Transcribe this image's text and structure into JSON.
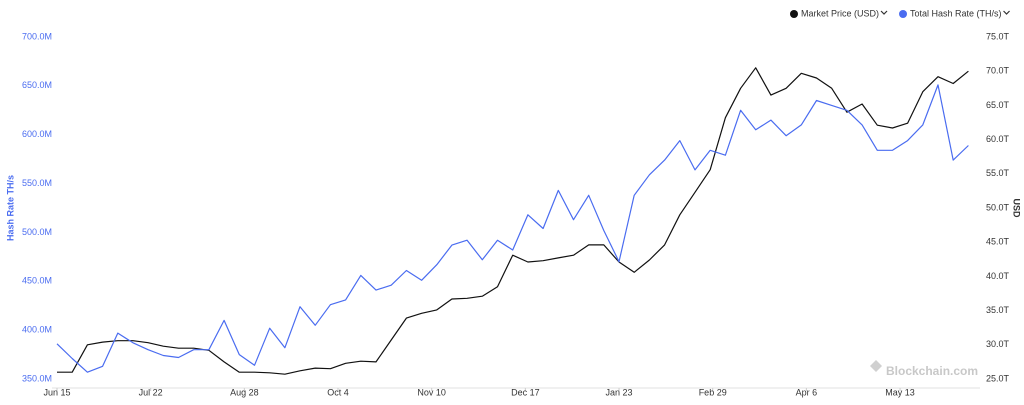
{
  "chart_data": {
    "type": "line",
    "y_label": "Hash Rate TH/s",
    "y2_label": "USD",
    "watermark": "Blockchain.com",
    "legend": "top-right",
    "grid": false,
    "xlim": [
      0,
      363
    ],
    "xticks": [
      {
        "value": 0,
        "label": "Jun 15"
      },
      {
        "value": 37,
        "label": "Jul 22"
      },
      {
        "value": 74,
        "label": "Aug 28"
      },
      {
        "value": 111,
        "label": "Oct 4"
      },
      {
        "value": 148,
        "label": "Nov 10"
      },
      {
        "value": 185,
        "label": "Dec 17"
      },
      {
        "value": 222,
        "label": "Jan 23"
      },
      {
        "value": 259,
        "label": "Feb 29"
      },
      {
        "value": 296,
        "label": "Apr 6"
      },
      {
        "value": 333,
        "label": "May 13"
      }
    ],
    "ylim": [
      350000000.0,
      700000000.0
    ],
    "yticks": [
      {
        "value": 350000000.0,
        "label": "350.0M"
      },
      {
        "value": 400000000.0,
        "label": "400.0M"
      },
      {
        "value": 450000000.0,
        "label": "450.0M"
      },
      {
        "value": 500000000.0,
        "label": "500.0M"
      },
      {
        "value": 550000000.0,
        "label": "550.0M"
      },
      {
        "value": 600000000.0,
        "label": "600.0M"
      },
      {
        "value": 650000000.0,
        "label": "650.0M"
      },
      {
        "value": 700000000.0,
        "label": "700.0M"
      }
    ],
    "y2lim": [
      25000000000000.0,
      75000000000000.0
    ],
    "y2ticks": [
      {
        "value": 25000000000000.0,
        "label": "25.0T"
      },
      {
        "value": 30000000000000.0,
        "label": "30.0T"
      },
      {
        "value": 35000000000000.0,
        "label": "35.0T"
      },
      {
        "value": 40000000000000.0,
        "label": "40.0T"
      },
      {
        "value": 45000000000000.0,
        "label": "45.0T"
      },
      {
        "value": 50000000000000.0,
        "label": "50.0T"
      },
      {
        "value": 55000000000000.0,
        "label": "55.0T"
      },
      {
        "value": 60000000000000.0,
        "label": "60.0T"
      },
      {
        "value": 65000000000000.0,
        "label": "65.0T"
      },
      {
        "value": 70000000000000.0,
        "label": "70.0T"
      },
      {
        "value": 75000000000000.0,
        "label": "75.0T"
      }
    ],
    "x": [
      0,
      6,
      12,
      18,
      24,
      30,
      36,
      42,
      48,
      54,
      60,
      66,
      72,
      78,
      84,
      90,
      96,
      102,
      108,
      114,
      120,
      126,
      132,
      138,
      144,
      150,
      156,
      162,
      168,
      174,
      180,
      186,
      192,
      198,
      204,
      210,
      216,
      222,
      228,
      234,
      240,
      246,
      252,
      258,
      264,
      270,
      276,
      282,
      288,
      294,
      300,
      306,
      312,
      318,
      324,
      330,
      336,
      342,
      348,
      354,
      360
    ],
    "series": [
      {
        "name": "Market Price (USD)",
        "color": "#111111",
        "axis": "y2",
        "values": [
          26000000000000.0,
          26000000000000.0,
          30000000000000.0,
          30400000000000.0,
          30600000000000.0,
          30600000000000.0,
          30300000000000.0,
          29800000000000.0,
          29500000000000.0,
          29500000000000.0,
          29200000000000.0,
          27500000000000.0,
          26000000000000.0,
          26000000000000.0,
          25900000000000.0,
          25700000000000.0,
          26200000000000.0,
          26600000000000.0,
          26500000000000.0,
          27300000000000.0,
          27600000000000.0,
          27500000000000.0,
          30700000000000.0,
          33900000000000.0,
          34600000000000.0,
          35100000000000.0,
          36700000000000.0,
          36800000000000.0,
          37100000000000.0,
          38500000000000.0,
          43100000000000.0,
          42100000000000.0,
          42300000000000.0,
          42700000000000.0,
          43100000000000.0,
          44600000000000.0,
          44600000000000.0,
          42100000000000.0,
          40600000000000.0,
          42400000000000.0,
          44600000000000.0,
          49000000000000.0,
          52300000000000.0,
          55600000000000.0,
          63200000000000.0,
          67500000000000.0,
          70500000000000.0,
          66500000000000.0,
          67500000000000.0,
          69700000000000.0,
          69000000000000.0,
          67500000000000.0,
          64000000000000.0,
          65200000000000.0,
          62100000000000.0,
          61700000000000.0,
          62400000000000.0,
          67000000000000.0,
          69200000000000.0,
          68200000000000.0,
          70000000000000.0
        ]
      },
      {
        "name": "Total Hash Rate (TH/s)",
        "color": "#4a6cf0",
        "axis": "y",
        "values": [
          386000000.0,
          371000000.0,
          357000000.0,
          363000000.0,
          397000000.0,
          387000000.0,
          380000000.0,
          374000000.0,
          372000000.0,
          380000000.0,
          380000000.0,
          410000000.0,
          375000000.0,
          364000000.0,
          402000000.0,
          382000000.0,
          424000000.0,
          405000000.0,
          426000000.0,
          431000000.0,
          456000000.0,
          441000000.0,
          446000000.0,
          461000000.0,
          451000000.0,
          467000000.0,
          487000000.0,
          492000000.0,
          472000000.0,
          492000000.0,
          482000000.0,
          518000000.0,
          504000000.0,
          543000000.0,
          513000000.0,
          538000000.0,
          502000000.0,
          470000000.0,
          538000000.0,
          559000000.0,
          574000000.0,
          594000000.0,
          564000000.0,
          584000000.0,
          579000000.0,
          625000000.0,
          605000000.0,
          615000000.0,
          599000000.0,
          610000000.0,
          635000000.0,
          630000000.0,
          625000000.0,
          610000000.0,
          584000000.0,
          584000000.0,
          594000000.0,
          610000000.0,
          651000000.0,
          574000000.0,
          589000000.0
        ]
      }
    ]
  }
}
